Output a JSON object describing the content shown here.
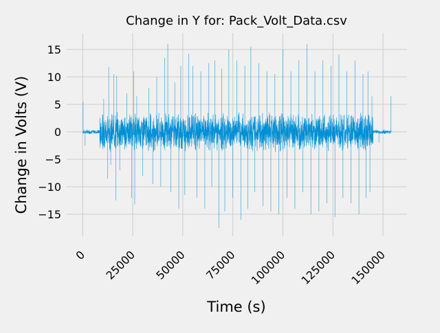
{
  "chart_data": {
    "type": "line",
    "title": "Change in Y for: Pack_Volt_Data.csv",
    "xlabel": "Time (s)",
    "ylabel": "Change in Volts (V)",
    "xlim": [
      -8000,
      162000
    ],
    "ylim": [
      -19,
      18
    ],
    "x_ticks": [
      0,
      25000,
      50000,
      75000,
      100000,
      125000,
      150000
    ],
    "x_tick_labels": [
      "0",
      "25000",
      "50000",
      "75000",
      "100000",
      "125000",
      "150000"
    ],
    "y_ticks": [
      15,
      10,
      5,
      0,
      -5,
      -10,
      -15
    ],
    "y_tick_labels": [
      "15",
      "10",
      "5",
      "0",
      "−5",
      "−10",
      "−15"
    ],
    "grid": true,
    "x_tick_rotation": 45,
    "colors": {
      "line": "#008fd5",
      "grid": "#cbcbcb",
      "background": "#f0f0f0"
    },
    "series": [
      {
        "x_start": 0,
        "x_end": 154000,
        "quiet_segments": [
          [
            0,
            8500,
            0.3
          ],
          [
            145000,
            154000,
            0.3
          ]
        ],
        "active_segment": [
          8500,
          145000,
          2.5
        ],
        "spikes": [
          {
            "x": 200,
            "y": 5.5
          },
          {
            "x": 1200,
            "y": -2.5
          },
          {
            "x": 10500,
            "y": 6.0
          },
          {
            "x": 12500,
            "y": -8.5
          },
          {
            "x": 13000,
            "y": 11.8
          },
          {
            "x": 14000,
            "y": -6.0
          },
          {
            "x": 15500,
            "y": 10.5
          },
          {
            "x": 16500,
            "y": -12.5
          },
          {
            "x": 17000,
            "y": 10.2
          },
          {
            "x": 18500,
            "y": -7.0
          },
          {
            "x": 22000,
            "y": 7.0
          },
          {
            "x": 24500,
            "y": -12.0
          },
          {
            "x": 25500,
            "y": 11.0
          },
          {
            "x": 26000,
            "y": -13.2
          },
          {
            "x": 27000,
            "y": 6.5
          },
          {
            "x": 30000,
            "y": -8.0
          },
          {
            "x": 33000,
            "y": 8.0
          },
          {
            "x": 35000,
            "y": -9.5
          },
          {
            "x": 37000,
            "y": 10.0
          },
          {
            "x": 39000,
            "y": -10.0
          },
          {
            "x": 41000,
            "y": 13.5
          },
          {
            "x": 42500,
            "y": 16.0
          },
          {
            "x": 44000,
            "y": -11.0
          },
          {
            "x": 46000,
            "y": 9.0
          },
          {
            "x": 48000,
            "y": -14.0
          },
          {
            "x": 49000,
            "y": 12.0
          },
          {
            "x": 51000,
            "y": -11.5
          },
          {
            "x": 53000,
            "y": 14.2
          },
          {
            "x": 55000,
            "y": 12.0
          },
          {
            "x": 57000,
            "y": -12.0
          },
          {
            "x": 59000,
            "y": 11.0
          },
          {
            "x": 61000,
            "y": -14.0
          },
          {
            "x": 63000,
            "y": 12.5
          },
          {
            "x": 64500,
            "y": -10.0
          },
          {
            "x": 66000,
            "y": 13.0
          },
          {
            "x": 68000,
            "y": -17.5
          },
          {
            "x": 69500,
            "y": 11.5
          },
          {
            "x": 71000,
            "y": -14.5
          },
          {
            "x": 73000,
            "y": 15.0
          },
          {
            "x": 75000,
            "y": -12.0
          },
          {
            "x": 77000,
            "y": 13.0
          },
          {
            "x": 79000,
            "y": -16.0
          },
          {
            "x": 81000,
            "y": 12.0
          },
          {
            "x": 82500,
            "y": -14.0
          },
          {
            "x": 84000,
            "y": 15.5
          },
          {
            "x": 86000,
            "y": -11.0
          },
          {
            "x": 88000,
            "y": 12.5
          },
          {
            "x": 90000,
            "y": -13.5
          },
          {
            "x": 92000,
            "y": 11.0
          },
          {
            "x": 94000,
            "y": -14.5
          },
          {
            "x": 96000,
            "y": 10.5
          },
          {
            "x": 98000,
            "y": -15.0
          },
          {
            "x": 100000,
            "y": 15.0
          },
          {
            "x": 102000,
            "y": -12.0
          },
          {
            "x": 104000,
            "y": 11.0
          },
          {
            "x": 106000,
            "y": -14.0
          },
          {
            "x": 108000,
            "y": 13.0
          },
          {
            "x": 110000,
            "y": -11.0
          },
          {
            "x": 112000,
            "y": 16.0
          },
          {
            "x": 114000,
            "y": -15.0
          },
          {
            "x": 116000,
            "y": 11.0
          },
          {
            "x": 118000,
            "y": -14.5
          },
          {
            "x": 120000,
            "y": 13.0
          },
          {
            "x": 122000,
            "y": -13.0
          },
          {
            "x": 124000,
            "y": 12.0
          },
          {
            "x": 126000,
            "y": -15.5
          },
          {
            "x": 128000,
            "y": 14.0
          },
          {
            "x": 130000,
            "y": -12.0
          },
          {
            "x": 132000,
            "y": 11.0
          },
          {
            "x": 134000,
            "y": -13.0
          },
          {
            "x": 136000,
            "y": 13.0
          },
          {
            "x": 138000,
            "y": -15.0
          },
          {
            "x": 140000,
            "y": 10.5
          },
          {
            "x": 141500,
            "y": -12.0
          },
          {
            "x": 142500,
            "y": 11.0
          },
          {
            "x": 143500,
            "y": -11.0
          },
          {
            "x": 144500,
            "y": 6.5
          },
          {
            "x": 148000,
            "y": -2.0
          },
          {
            "x": 154000,
            "y": 6.5
          }
        ]
      }
    ]
  }
}
